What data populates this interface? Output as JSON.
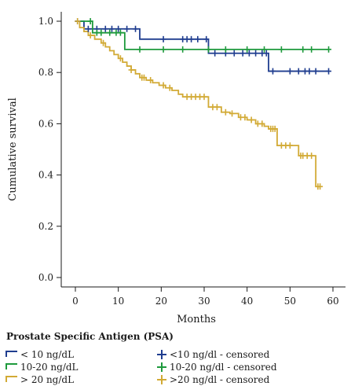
{
  "chart_data": {
    "type": "line",
    "subtype": "kaplan-meier",
    "xlabel": "Months",
    "ylabel": "Cumulative survival",
    "xlim": [
      0,
      60
    ],
    "ylim": [
      0.0,
      1.0
    ],
    "x_ticks": [
      "0",
      "10",
      "20",
      "30",
      "40",
      "50",
      "60"
    ],
    "y_ticks": [
      "0.0",
      "0.2",
      "0.4",
      "0.6",
      "0.8",
      "1.0"
    ],
    "grid": false,
    "legend_title": "Prostate Specific Antigen (PSA)",
    "legend_placement": "bottom",
    "series": [
      {
        "name": "< 10 ng/dL",
        "censored_name": "<10 ng/dl - censored",
        "color": "#1f3d8f",
        "steps": [
          [
            0,
            1.0
          ],
          [
            2,
            0.97
          ],
          [
            15,
            0.93
          ],
          [
            31,
            0.875
          ],
          [
            45,
            0.805
          ],
          [
            59,
            0.805
          ]
        ],
        "censored": [
          [
            0.5,
            1.0
          ],
          [
            3,
            0.97
          ],
          [
            5,
            0.97
          ],
          [
            7,
            0.97
          ],
          [
            8.5,
            0.97
          ],
          [
            10,
            0.97
          ],
          [
            12,
            0.97
          ],
          [
            14,
            0.97
          ],
          [
            20.5,
            0.93
          ],
          [
            25,
            0.93
          ],
          [
            26,
            0.93
          ],
          [
            27,
            0.93
          ],
          [
            28.5,
            0.93
          ],
          [
            30.5,
            0.93
          ],
          [
            32.5,
            0.875
          ],
          [
            35,
            0.875
          ],
          [
            37,
            0.875
          ],
          [
            39,
            0.875
          ],
          [
            40.5,
            0.875
          ],
          [
            42,
            0.875
          ],
          [
            43.5,
            0.875
          ],
          [
            44.5,
            0.875
          ],
          [
            46,
            0.805
          ],
          [
            50,
            0.805
          ],
          [
            52,
            0.805
          ],
          [
            53.5,
            0.805
          ],
          [
            54.5,
            0.805
          ],
          [
            56,
            0.805
          ],
          [
            59,
            0.805
          ]
        ]
      },
      {
        "name": "10-20 ng/dL",
        "censored_name": "10-20 ng/dl - censored",
        "color": "#1e9a3c",
        "steps": [
          [
            0,
            1.0
          ],
          [
            4,
            0.955
          ],
          [
            11.5,
            0.89
          ],
          [
            59,
            0.89
          ]
        ],
        "censored": [
          [
            3.5,
            1.0
          ],
          [
            5,
            0.955
          ],
          [
            6,
            0.955
          ],
          [
            8,
            0.955
          ],
          [
            9.5,
            0.955
          ],
          [
            10.5,
            0.955
          ],
          [
            15,
            0.89
          ],
          [
            20.5,
            0.89
          ],
          [
            25,
            0.89
          ],
          [
            31,
            0.89
          ],
          [
            35,
            0.89
          ],
          [
            40,
            0.89
          ],
          [
            44,
            0.89
          ],
          [
            48,
            0.89
          ],
          [
            53,
            0.89
          ],
          [
            55,
            0.89
          ],
          [
            59,
            0.89
          ]
        ]
      },
      {
        "name": "> 20 ng/dL",
        "censored_name": ">20 ng/dl - censored",
        "color": "#d2aa35",
        "steps": [
          [
            0,
            1.0
          ],
          [
            1,
            0.975
          ],
          [
            2,
            0.96
          ],
          [
            3,
            0.945
          ],
          [
            4.5,
            0.93
          ],
          [
            6,
            0.915
          ],
          [
            7,
            0.9
          ],
          [
            8,
            0.885
          ],
          [
            9,
            0.87
          ],
          [
            10,
            0.855
          ],
          [
            11,
            0.84
          ],
          [
            12,
            0.825
          ],
          [
            13,
            0.81
          ],
          [
            14,
            0.795
          ],
          [
            15,
            0.78
          ],
          [
            16.5,
            0.77
          ],
          [
            18,
            0.76
          ],
          [
            19.5,
            0.75
          ],
          [
            21,
            0.74
          ],
          [
            22.5,
            0.73
          ],
          [
            24,
            0.715
          ],
          [
            25,
            0.705
          ],
          [
            31,
            0.665
          ],
          [
            34,
            0.645
          ],
          [
            36,
            0.64
          ],
          [
            38,
            0.625
          ],
          [
            40,
            0.615
          ],
          [
            42,
            0.6
          ],
          [
            44,
            0.59
          ],
          [
            45,
            0.58
          ],
          [
            47,
            0.515
          ],
          [
            52,
            0.475
          ],
          [
            56,
            0.355
          ],
          [
            57,
            0.355
          ]
        ],
        "censored": [
          [
            0.5,
            1.0
          ],
          [
            3.5,
            0.945
          ],
          [
            6.5,
            0.915
          ],
          [
            10.5,
            0.855
          ],
          [
            13,
            0.81
          ],
          [
            15.5,
            0.78
          ],
          [
            16,
            0.78
          ],
          [
            17.5,
            0.77
          ],
          [
            20.5,
            0.75
          ],
          [
            22,
            0.74
          ],
          [
            26,
            0.705
          ],
          [
            27,
            0.705
          ],
          [
            28,
            0.705
          ],
          [
            29,
            0.705
          ],
          [
            30,
            0.705
          ],
          [
            32,
            0.665
          ],
          [
            33,
            0.665
          ],
          [
            35,
            0.645
          ],
          [
            36.5,
            0.64
          ],
          [
            38.5,
            0.625
          ],
          [
            39.5,
            0.625
          ],
          [
            41,
            0.615
          ],
          [
            42.5,
            0.6
          ],
          [
            43.5,
            0.6
          ],
          [
            45.5,
            0.58
          ],
          [
            46,
            0.58
          ],
          [
            46.5,
            0.58
          ],
          [
            48,
            0.515
          ],
          [
            49,
            0.515
          ],
          [
            50,
            0.515
          ],
          [
            52.5,
            0.475
          ],
          [
            53,
            0.475
          ],
          [
            54,
            0.475
          ],
          [
            55,
            0.475
          ],
          [
            56.5,
            0.355
          ],
          [
            57,
            0.355
          ]
        ]
      }
    ]
  }
}
